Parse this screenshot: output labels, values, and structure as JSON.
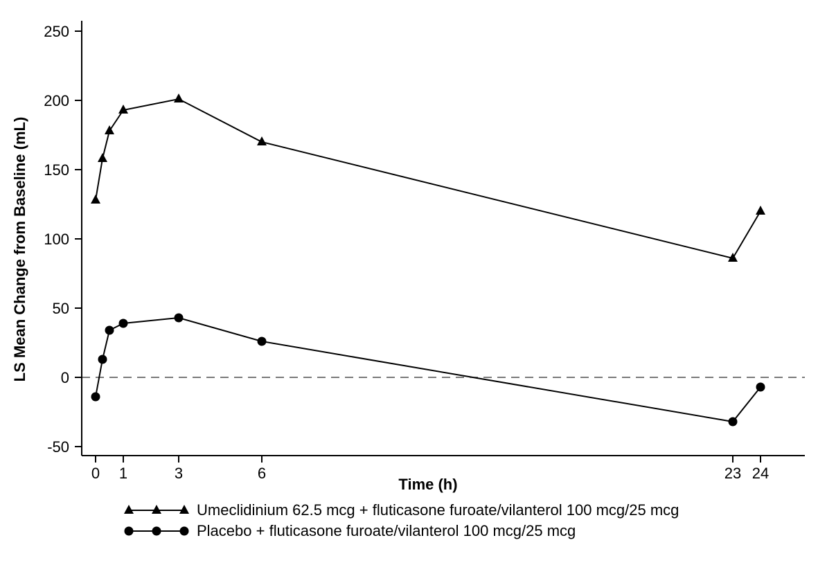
{
  "chart_data": {
    "type": "line",
    "title": "",
    "xlabel": "Time (h)",
    "ylabel": "LS Mean Change from Baseline (mL)",
    "x": [
      0,
      0.25,
      0.5,
      1,
      3,
      6,
      23,
      24
    ],
    "x_ticks": [
      0,
      1,
      3,
      6,
      23,
      24
    ],
    "y_ticks": [
      -50,
      0,
      50,
      100,
      150,
      200,
      250
    ],
    "xlim": [
      0,
      24
    ],
    "ylim": [
      -50,
      250
    ],
    "grid": false,
    "reference_line_y": 0,
    "reference_line_style": "dashed",
    "reference_line_color": "#4d4d4d",
    "axis_color": "#000000",
    "legend_position": "bottom",
    "series": [
      {
        "name": "Umeclidinium 62.5 mcg + fluticasone furoate/vilanterol 100 mcg/25 mcg",
        "marker": "triangle",
        "color": "#000000",
        "values": [
          128,
          158,
          178,
          193,
          201,
          170,
          86,
          120
        ]
      },
      {
        "name": "Placebo + fluticasone furoate/vilanterol 100 mcg/25 mcg",
        "marker": "circle",
        "color": "#000000",
        "values": [
          -14,
          13,
          34,
          39,
          43,
          26,
          -32,
          -7
        ]
      }
    ]
  }
}
